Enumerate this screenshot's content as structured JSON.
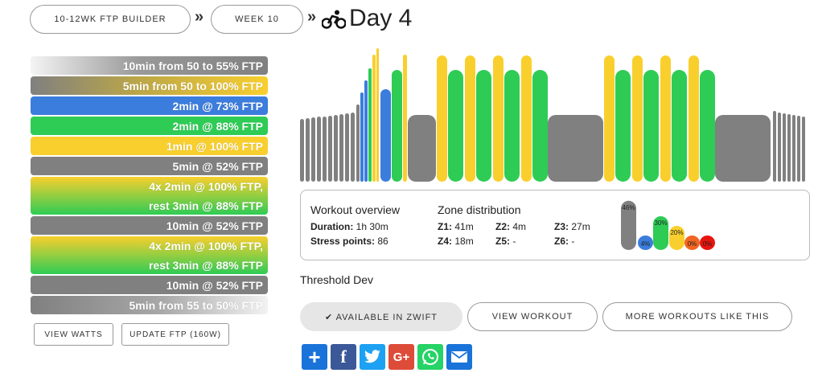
{
  "breadcrumb": {
    "plan": "10-12WK FTP BUILDER",
    "week": "WEEK 10",
    "separator": "»",
    "day": "Day 4"
  },
  "steps": [
    {
      "text": "10min from 50 to 55% FTP",
      "zone": "ramp-grey-white"
    },
    {
      "text": "5min from 50 to 100% FTP",
      "zone": "ramp-grey-yellow"
    },
    {
      "text": "2min @ 73% FTP",
      "zone": "blue"
    },
    {
      "text": "2min @ 88% FTP",
      "zone": "green"
    },
    {
      "text": "1min @ 100% FTP",
      "zone": "yellow"
    },
    {
      "text": "5min @ 52% FTP",
      "zone": "grey"
    },
    {
      "line1": "4x 2min @ 100% FTP,",
      "line2": "rest 3min @ 88% FTP",
      "zone": "yellow-green"
    },
    {
      "text": "10min @ 52% FTP",
      "zone": "grey"
    },
    {
      "line1": "4x 2min @ 100% FTP,",
      "line2": "rest 3min @ 88% FTP",
      "zone": "yellow-green"
    },
    {
      "text": "10min @ 52% FTP",
      "zone": "grey"
    },
    {
      "text": "5min from 55 to 50% FTP",
      "zone": "ramp-grey-white"
    }
  ],
  "buttons": {
    "view_watts": "VIEW WATTS",
    "update_ftp": "UPDATE FTP (160W)"
  },
  "overview": {
    "title": "Workout overview",
    "duration_label": "Duration:",
    "duration_value": "1h 30m",
    "stress_label": "Stress points:",
    "stress_value": "86"
  },
  "zones": {
    "title": "Zone distribution",
    "items": [
      {
        "label": "Z1:",
        "value": "41m"
      },
      {
        "label": "Z2:",
        "value": "4m"
      },
      {
        "label": "Z3:",
        "value": "27m"
      },
      {
        "label": "Z4:",
        "value": "18m"
      },
      {
        "label": "Z5:",
        "value": "-"
      },
      {
        "label": "Z6:",
        "value": "-"
      }
    ],
    "bars": [
      {
        "pct": "46%",
        "fraction": 0.46,
        "color": "#808080"
      },
      {
        "pct": "4%",
        "fraction": 0.04,
        "color": "#3b7ddd"
      },
      {
        "pct": "30%",
        "fraction": 0.3,
        "color": "#2ecc55"
      },
      {
        "pct": "20%",
        "fraction": 0.2,
        "color": "#f9cf2d"
      },
      {
        "pct": "0%",
        "fraction": 0.0,
        "color": "#f26522"
      },
      {
        "pct": "0%",
        "fraction": 0.0,
        "color": "#e8140e"
      }
    ]
  },
  "description": "Threshold Dev",
  "actions": {
    "zwift": "✔ AVAILABLE IN ZWIFT",
    "view_workout": "VIEW WORKOUT",
    "more_like": "MORE WORKOUTS LIKE THIS"
  },
  "share": [
    {
      "name": "share-add-icon",
      "glyph": "+",
      "color": "#1a73d9"
    },
    {
      "name": "facebook-icon",
      "glyph": "f",
      "color": "#3b5998"
    },
    {
      "name": "twitter-icon",
      "glyph": "t",
      "color": "#1da1f2"
    },
    {
      "name": "google-plus-icon",
      "glyph": "G+",
      "color": "#dd4b39"
    },
    {
      "name": "whatsapp-icon",
      "glyph": "☏",
      "color": "#25d366"
    },
    {
      "name": "email-icon",
      "glyph": "✉",
      "color": "#1a73d9"
    }
  ],
  "colors": {
    "grey": "#808080",
    "blue": "#3b7ddd",
    "green": "#2ecc55",
    "yellow": "#f9cf2d"
  }
}
